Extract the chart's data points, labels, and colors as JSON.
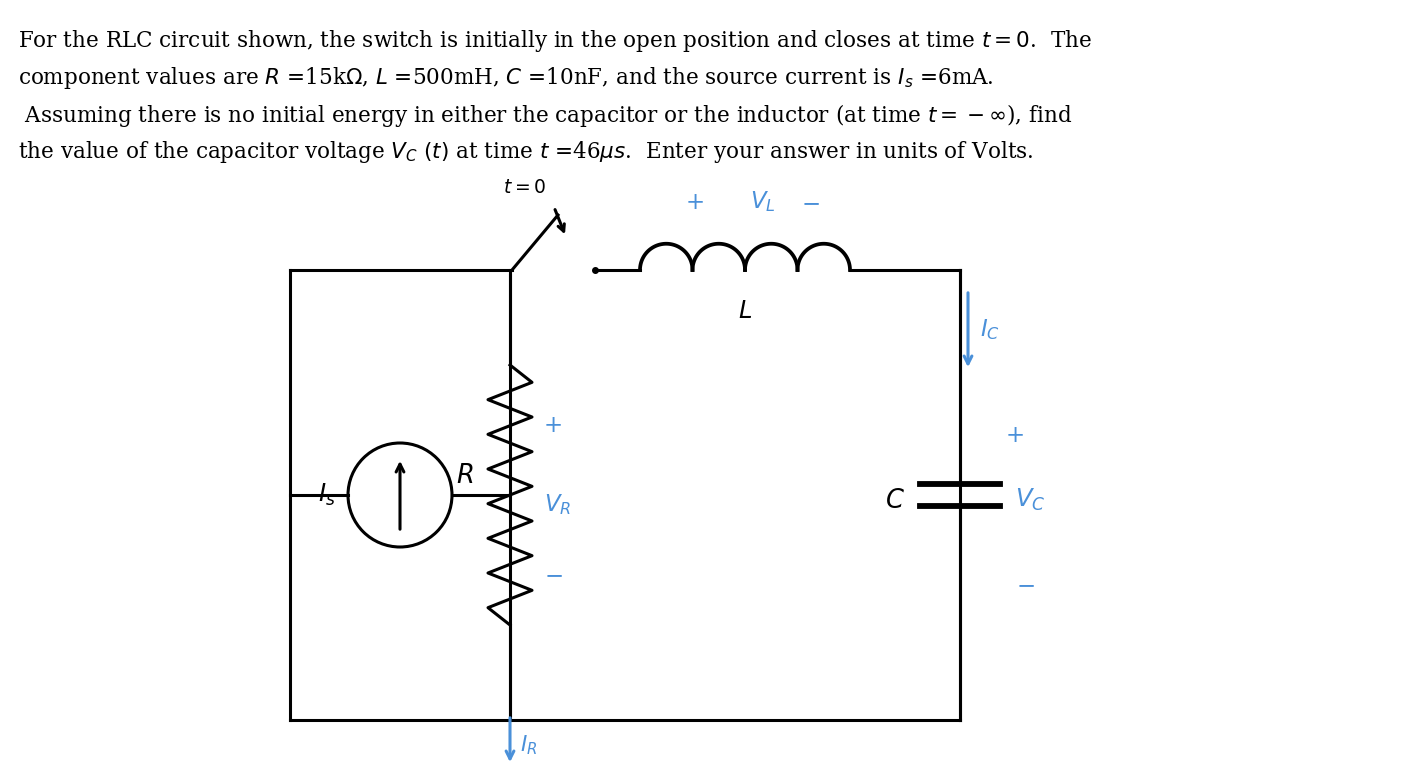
{
  "bg_color": "#ffffff",
  "text_color": "#000000",
  "blue_color": "#4a90d9",
  "circuit_color": "#000000",
  "line_width": 2.2,
  "font_size": 15.5
}
